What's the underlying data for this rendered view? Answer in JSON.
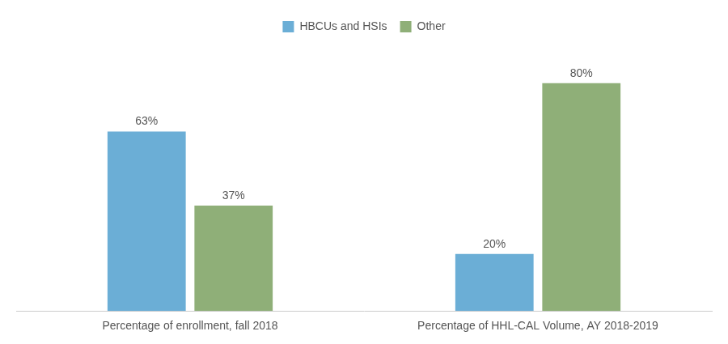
{
  "chart_data": {
    "type": "bar",
    "categories": [
      "Percentage of enrollment, fall 2018",
      "Percentage of HHL-CAL Volume, AY 2018-2019"
    ],
    "series": [
      {
        "name": "HBCUs and HSIs",
        "color": "#6BAED6",
        "values": [
          63,
          20
        ],
        "value_labels": [
          "63%",
          "20%"
        ]
      },
      {
        "name": "Other",
        "color": "#8FAF78",
        "values": [
          37,
          80
        ],
        "value_labels": [
          "37%",
          "80%"
        ]
      }
    ],
    "ylim": [
      0,
      95
    ],
    "grid": false,
    "legend": "top",
    "data_labels": true,
    "tick_labels": "x"
  }
}
